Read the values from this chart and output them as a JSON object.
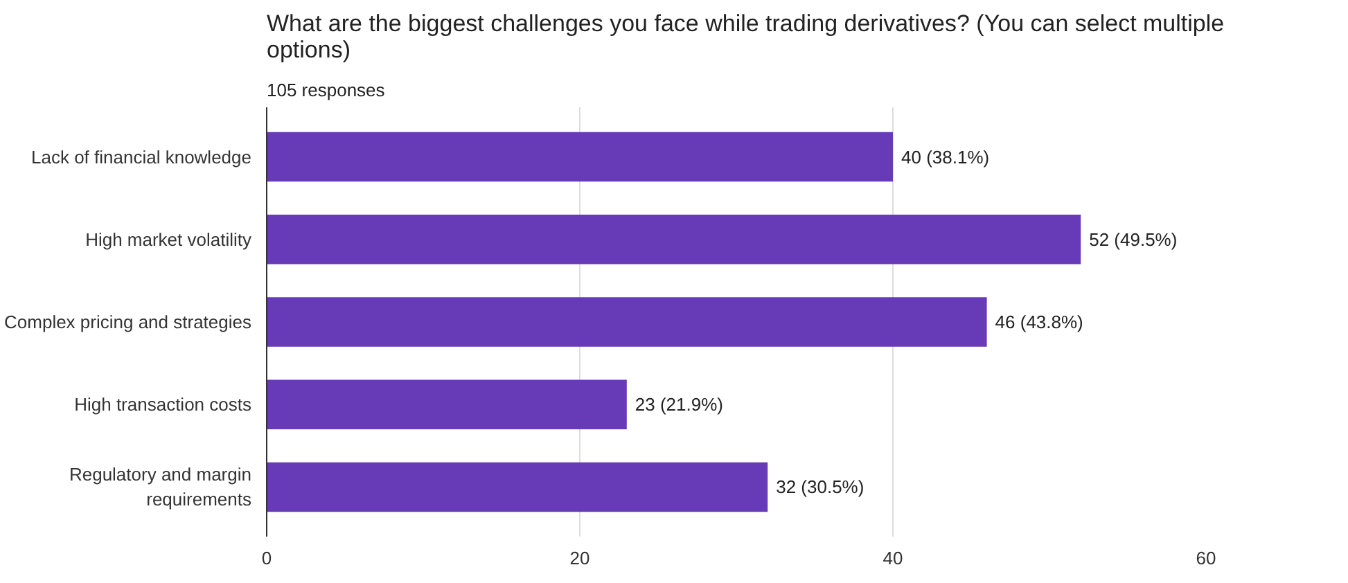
{
  "chart_data": {
    "type": "bar",
    "orientation": "horizontal",
    "title": "What are the biggest challenges you face while trading derivatives?   (You can select multiple options)",
    "subtitle": "105 responses",
    "categories": [
      "Lack of financial knowledge",
      "High market volatility",
      "Complex pricing and strategies",
      "High transaction costs",
      "Regulatory and margin requirements"
    ],
    "values": [
      40,
      52,
      46,
      23,
      32
    ],
    "value_labels": [
      "40 (38.1%)",
      "52 (49.5%)",
      "46 (43.8%)",
      "23 (21.9%)",
      "32 (30.5%)"
    ],
    "color": "#673ab7",
    "xlim": [
      0,
      60
    ],
    "xticks": [
      0,
      20,
      40,
      60
    ],
    "grid": "x"
  }
}
